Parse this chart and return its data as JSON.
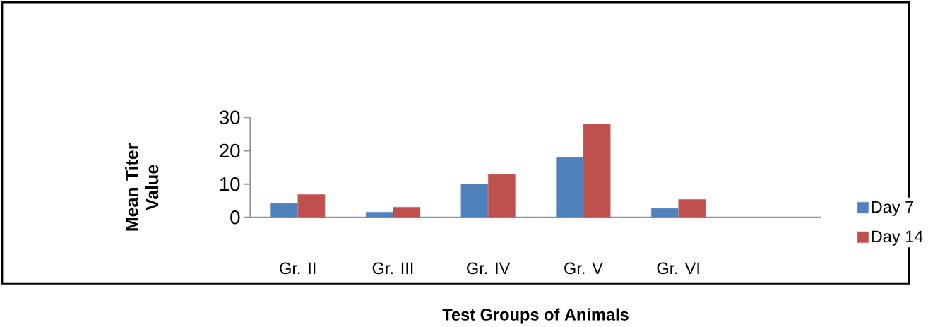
{
  "chart_data": {
    "type": "bar",
    "xlabel": "Test Groups of Animals",
    "ylabel": "Mean Titer Value",
    "categories": [
      "Gr. II",
      "Gr. III",
      "Gr. IV",
      "Gr. V",
      "Gr. VI",
      null
    ],
    "series": [
      {
        "name": "Day 7",
        "color": "#4f81bd",
        "values": [
          4.2,
          1.6,
          10,
          18,
          2.7,
          null
        ]
      },
      {
        "name": "Day 14",
        "color": "#c0504d",
        "values": [
          6.9,
          3.1,
          12.9,
          28,
          5.4,
          null
        ]
      }
    ],
    "ylim": [
      0,
      30
    ],
    "yticks": [
      0,
      10,
      20,
      30
    ],
    "grid": false,
    "legend": "right"
  }
}
